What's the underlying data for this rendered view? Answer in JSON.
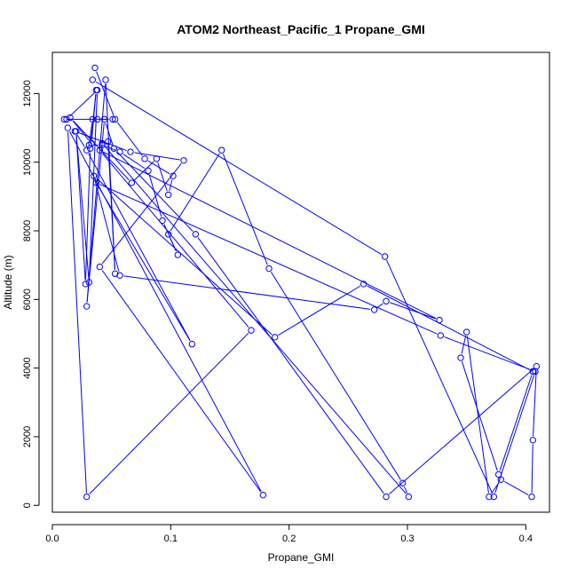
{
  "chart_data": {
    "type": "line",
    "title": "ATOM2 Northeast_Pacific_1 Propane_GMI",
    "xlabel": "Propane_GMI",
    "ylabel": "Altitude (m)",
    "xlim": [
      0.0,
      0.42
    ],
    "ylim": [
      -200,
      13200
    ],
    "xticks": [
      0.0,
      0.1,
      0.2,
      0.3,
      0.4
    ],
    "xtick_labels": [
      "0.0",
      "0.1",
      "0.2",
      "0.3",
      "0.4"
    ],
    "yticks": [
      0,
      2000,
      4000,
      6000,
      8000,
      10000,
      12000
    ],
    "ytick_labels": [
      "0",
      "2000",
      "4000",
      "6000",
      "8000",
      "10000",
      "12000"
    ],
    "grid": false,
    "series": [
      {
        "color": "#0000ff",
        "marker": "open-circle",
        "x": [
          0.036,
          0.053,
          0.078,
          0.102,
          0.098,
          0.088,
          0.067,
          0.015,
          0.033,
          0.037,
          0.032,
          0.028,
          0.02,
          0.031,
          0.038,
          0.012,
          0.01,
          0.038,
          0.051,
          0.034,
          0.031,
          0.042,
          0.057,
          0.081,
          0.093,
          0.106,
          0.098,
          0.143,
          0.183,
          0.296,
          0.301,
          0.042,
          0.047,
          0.053,
          0.045,
          0.029,
          0.044,
          0.052,
          0.121,
          0.282,
          0.409,
          0.406,
          0.405,
          0.379,
          0.369,
          0.35,
          0.345,
          0.377,
          0.406,
          0.406,
          0.263,
          0.188,
          0.035,
          0.057,
          0.272,
          0.282,
          0.327,
          0.04,
          0.168,
          0.029,
          0.013,
          0.178,
          0.04,
          0.111,
          0.066,
          0.019,
          0.029,
          0.118,
          0.037,
          0.328,
          0.408,
          0.373,
          0.281,
          0.034
        ],
        "y": [
          12750,
          11250,
          10100,
          9600,
          9050,
          10100,
          9400,
          11300,
          10550,
          12100,
          10400,
          6450,
          10900,
          6500,
          12100,
          11250,
          11250,
          11250,
          11250,
          11250,
          10500,
          10500,
          10300,
          9750,
          8300,
          7300,
          7900,
          10350,
          6900,
          650,
          250,
          10550,
          10600,
          6750,
          12400,
          5800,
          11250,
          10400,
          7900,
          250,
          4050,
          1900,
          250,
          750,
          250,
          5050,
          4300,
          900,
          3900,
          3900,
          6450,
          4900,
          9600,
          6700,
          5700,
          5950,
          5400,
          10350,
          5100,
          250,
          11000,
          300,
          6950,
          10050,
          10300,
          10900,
          10350,
          4700,
          9400,
          4950,
          3900,
          250,
          7250,
          12400
        ]
      }
    ]
  }
}
